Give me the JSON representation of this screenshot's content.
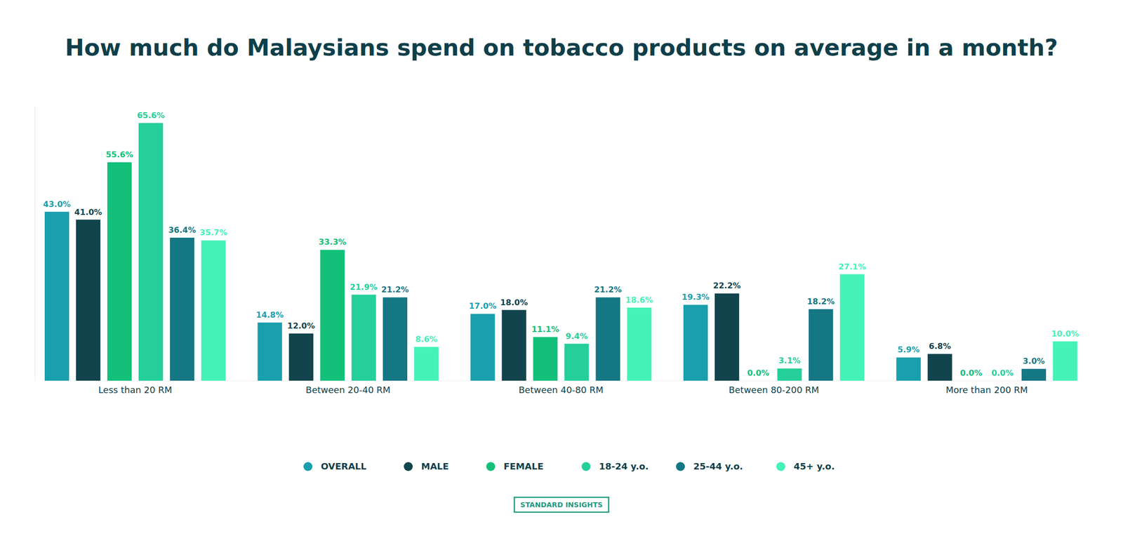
{
  "chart_data": {
    "type": "bar",
    "title": "How much do Malaysians spend on tobacco products on average in a month?",
    "source": "STANDARD INSIGHTS",
    "categories": [
      "Less than 20 RM",
      "Between 20-40 RM",
      "Between 40-80 RM",
      "Between 80-200 RM",
      "More than 200 RM"
    ],
    "series": [
      {
        "name": "OVERALL",
        "color": "#1a9fad",
        "values": [
          43.0,
          14.8,
          17.0,
          19.3,
          5.9
        ],
        "value_labels": [
          "43.0%",
          "14.8%",
          "17.0%",
          "19.3%",
          "5.9%"
        ]
      },
      {
        "name": "MALE",
        "color": "#12444d",
        "values": [
          41.0,
          12.0,
          18.0,
          22.2,
          6.8
        ],
        "value_labels": [
          "41.0%",
          "12.0%",
          "18.0%",
          "22.2%",
          "6.8%"
        ]
      },
      {
        "name": "FEMALE",
        "color": "#12c07a",
        "values": [
          55.6,
          33.3,
          11.1,
          0.0,
          0.0
        ],
        "value_labels": [
          "55.6%",
          "33.3%",
          "11.1%",
          "0.0%",
          "0.0%"
        ]
      },
      {
        "name": "18-24 y.o.",
        "color": "#25cf9a",
        "values": [
          65.6,
          21.9,
          9.4,
          3.1,
          0.0
        ],
        "value_labels": [
          "65.6%",
          "21.9%",
          "9.4%",
          "3.1%",
          "0.0%"
        ]
      },
      {
        "name": "25-44 y.o.",
        "color": "#147783",
        "values": [
          36.4,
          21.2,
          21.2,
          18.2,
          3.0
        ],
        "value_labels": [
          "36.4%",
          "21.2%",
          "21.2%",
          "18.2%",
          "3.0%"
        ]
      },
      {
        "name": "45+ y.o.",
        "color": "#45f2b8",
        "values": [
          35.7,
          8.6,
          18.6,
          27.1,
          10.0
        ],
        "value_labels": [
          "35.7%",
          "8.6%",
          "18.6%",
          "27.1%",
          "10.0%"
        ]
      }
    ],
    "ylim": [
      0,
      70
    ],
    "data_labels": true,
    "tick_labels": "x",
    "legend": "bottom"
  }
}
